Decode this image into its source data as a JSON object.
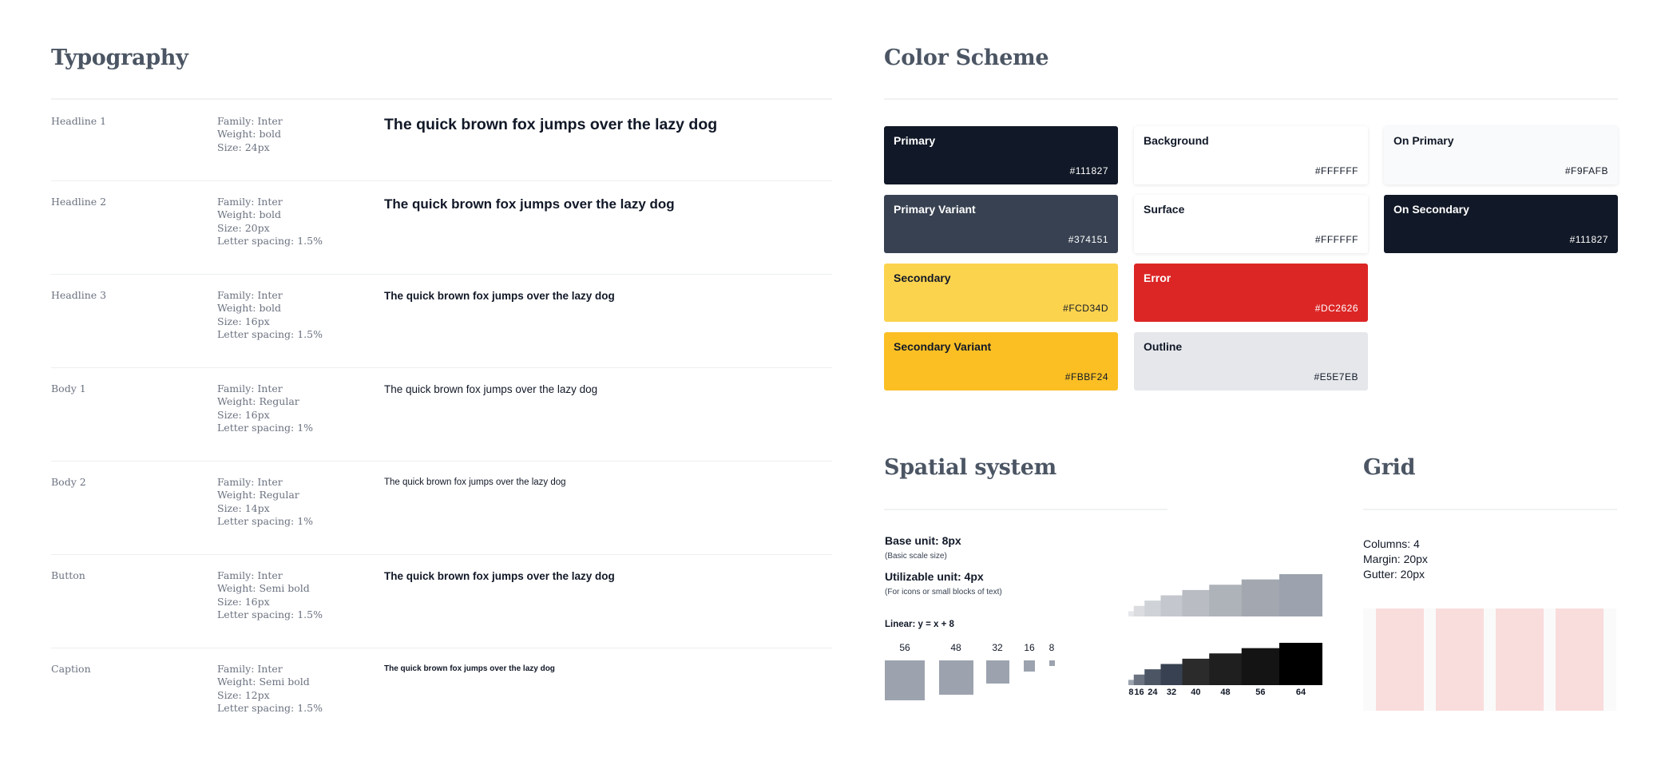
{
  "typography": {
    "title": "Typography",
    "rows": [
      {
        "name": "Headline 1",
        "specs": [
          "Family: Inter",
          "Weight: bold",
          "Size: 24px"
        ],
        "sample": "The quick brown fox jumps over the lazy dog"
      },
      {
        "name": "Headline 2",
        "specs": [
          "Family: Inter",
          "Weight: bold",
          "Size: 20px",
          "Letter spacing: 1.5%"
        ],
        "sample": "The quick brown fox jumps over the lazy dog"
      },
      {
        "name": "Headline 3",
        "specs": [
          "Family: Inter",
          "Weight: bold",
          "Size: 16px",
          "Letter spacing: 1.5%"
        ],
        "sample": "The quick brown fox jumps over the lazy dog"
      },
      {
        "name": "Body 1",
        "specs": [
          "Family: Inter",
          "Weight: Regular",
          "Size: 16px",
          "Letter spacing: 1%"
        ],
        "sample": "The quick brown fox jumps over the lazy dog"
      },
      {
        "name": "Body 2",
        "specs": [
          "Family: Inter",
          "Weight: Regular",
          "Size: 14px",
          "Letter spacing: 1%"
        ],
        "sample": "The quick brown fox jumps over the lazy dog"
      },
      {
        "name": "Button",
        "specs": [
          "Family: Inter",
          "Weight: Semi bold",
          "Size: 16px",
          "Letter spacing: 1.5%"
        ],
        "sample": "The quick brown fox jumps over the lazy dog"
      },
      {
        "name": "Caption",
        "specs": [
          "Family: Inter",
          "Weight: Semi bold",
          "Size: 12px",
          "Letter spacing: 1.5%"
        ],
        "sample": "The quick brown fox jumps over the lazy dog"
      }
    ]
  },
  "color_scheme": {
    "title": "Color Scheme",
    "swatches": [
      {
        "name": "Primary",
        "hex": "#111827",
        "bg": "#111827",
        "fg": "#ffffff"
      },
      {
        "name": "Background",
        "hex": "#FFFFFF",
        "bg": "#ffffff",
        "fg": "#111827"
      },
      {
        "name": "On Primary",
        "hex": "#F9FAFB",
        "bg": "#f9fafb",
        "fg": "#111827"
      },
      {
        "name": "Primary Variant",
        "hex": "#374151",
        "bg": "#374151",
        "fg": "#ffffff"
      },
      {
        "name": "Surface",
        "hex": "#FFFFFF",
        "bg": "#ffffff",
        "fg": "#111827"
      },
      {
        "name": "On Secondary",
        "hex": "#111827",
        "bg": "#111827",
        "fg": "#ffffff"
      },
      {
        "name": "Secondary",
        "hex": "#FCD34D",
        "bg": "#fcd34d",
        "fg": "#111827"
      },
      {
        "name": "Error",
        "hex": "#DC2626",
        "bg": "#dc2626",
        "fg": "#ffffff"
      },
      {
        "name": "Secondary Variant",
        "hex": "#FBBF24",
        "bg": "#fbbf24",
        "fg": "#111827"
      },
      {
        "name": "Outline",
        "hex": "#E5E7EB",
        "bg": "#e5e7eb",
        "fg": "#111827"
      }
    ]
  },
  "spatial": {
    "title": "Spatial system",
    "base_unit": "Base unit: 8px",
    "base_note": "(Basic scale size)",
    "util_unit": "Utilizable unit: 4px",
    "util_note": "(For icons or small blocks of text)",
    "linear": "Linear: y =  x + 8",
    "squares": [
      56,
      48,
      32,
      16,
      8
    ],
    "stair_values": [
      8,
      16,
      24,
      32,
      40,
      48,
      56,
      64
    ],
    "stair_labels": [
      "8",
      "16",
      "24",
      "32",
      "40",
      "48",
      "56",
      "64"
    ],
    "light_colors": [
      "#e5e7eb",
      "#dadce0",
      "#cfd2d7",
      "#c4c7cd",
      "#b9bcc3",
      "#aeb2b9",
      "#a3a8b0",
      "#9ca3af"
    ],
    "dark_colors": [
      "#9ca3af",
      "#6b7280",
      "#4b5563",
      "#374151",
      "#2b2b2b",
      "#1f1f1f",
      "#141414",
      "#000000"
    ]
  },
  "grid": {
    "title": "Grid",
    "columns": "Columns: 4",
    "margin": "Margin: 20px",
    "gutter": "Gutter: 20px",
    "column_count": 4
  }
}
